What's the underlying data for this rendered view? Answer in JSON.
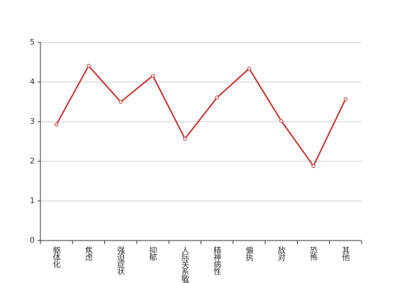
{
  "chart_data": {
    "type": "line",
    "categories": [
      "躯体化",
      "焦虑",
      "强迫症状",
      "抑郁",
      "人际关系敏感",
      "精神病性",
      "偏执",
      "敌对",
      "恐怖",
      "其他"
    ],
    "values": [
      2.93,
      4.41,
      3.5,
      4.16,
      2.57,
      3.61,
      4.34,
      3.02,
      1.88,
      3.57
    ],
    "color": "#c23531",
    "ylim": [
      0,
      5
    ],
    "yticks": [
      0,
      1,
      2,
      3,
      4,
      5
    ],
    "grid": true
  }
}
